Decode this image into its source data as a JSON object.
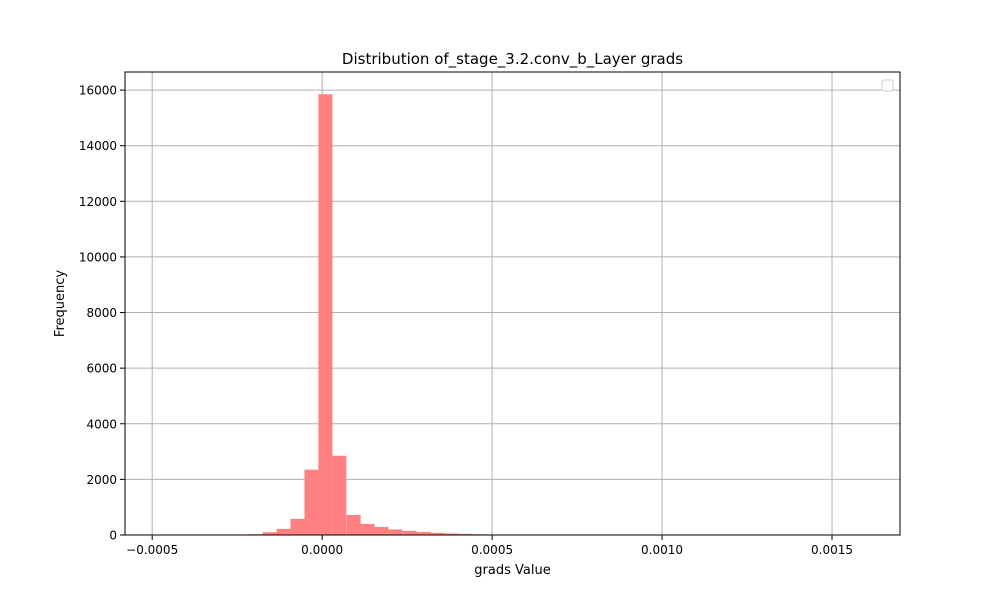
{
  "chart_data": {
    "type": "bar",
    "title": "Distribution of_stage_3.2.conv_b_Layer grads",
    "xlabel": "grads Value",
    "ylabel": "Frequency",
    "xlim": [
      -0.00058,
      0.0017
    ],
    "ylim": [
      0,
      16650
    ],
    "x_ticks": [
      {
        "value": -0.0005,
        "label": "−0.0005"
      },
      {
        "value": 0.0,
        "label": "0.0000"
      },
      {
        "value": 0.0005,
        "label": "0.0005"
      },
      {
        "value": 0.001,
        "label": "0.0010"
      },
      {
        "value": 0.0015,
        "label": "0.0015"
      }
    ],
    "y_ticks": [
      {
        "value": 0,
        "label": "0"
      },
      {
        "value": 2000,
        "label": "2000"
      },
      {
        "value": 4000,
        "label": "4000"
      },
      {
        "value": 6000,
        "label": "6000"
      },
      {
        "value": 8000,
        "label": "8000"
      },
      {
        "value": 10000,
        "label": "10000"
      },
      {
        "value": 12000,
        "label": "12000"
      },
      {
        "value": 14000,
        "label": "14000"
      },
      {
        "value": 16000,
        "label": "16000"
      }
    ],
    "grid": true,
    "legend": "top-right (empty)",
    "bar_color": "#ff8080",
    "bin_width": 4.12e-05,
    "bins": [
      {
        "x0": -0.000505,
        "count": 0
      },
      {
        "x0": -0.000464,
        "count": 0
      },
      {
        "x0": -0.000423,
        "count": 0
      },
      {
        "x0": -0.000381,
        "count": 0
      },
      {
        "x0": -0.00034,
        "count": 0
      },
      {
        "x0": -0.000299,
        "count": 3
      },
      {
        "x0": -0.000258,
        "count": 10
      },
      {
        "x0": -0.000217,
        "count": 30
      },
      {
        "x0": -0.000175,
        "count": 100
      },
      {
        "x0": -0.000134,
        "count": 220
      },
      {
        "x0": -9.3e-05,
        "count": 580
      },
      {
        "x0": -5.2e-05,
        "count": 2350
      },
      {
        "x0": -1.1e-05,
        "count": 15850
      },
      {
        "x0": 3e-05,
        "count": 2850
      },
      {
        "x0": 7.2e-05,
        "count": 720
      },
      {
        "x0": 0.000113,
        "count": 400
      },
      {
        "x0": 0.000154,
        "count": 290
      },
      {
        "x0": 0.000195,
        "count": 200
      },
      {
        "x0": 0.000237,
        "count": 150
      },
      {
        "x0": 0.000278,
        "count": 110
      },
      {
        "x0": 0.000319,
        "count": 80
      },
      {
        "x0": 0.00036,
        "count": 55
      },
      {
        "x0": 0.000402,
        "count": 40
      },
      {
        "x0": 0.000443,
        "count": 28
      },
      {
        "x0": 0.000484,
        "count": 15
      },
      {
        "x0": 0.000525,
        "count": 8
      },
      {
        "x0": 0.000566,
        "count": 5
      },
      {
        "x0": 0.000608,
        "count": 3
      },
      {
        "x0": 0.000649,
        "count": 2
      },
      {
        "x0": 0.00069,
        "count": 1
      },
      {
        "x0": 0.000731,
        "count": 1
      },
      {
        "x0": 0.000773,
        "count": 1
      },
      {
        "x0": 0.000814,
        "count": 0
      },
      {
        "x0": 0.000855,
        "count": 0
      },
      {
        "x0": 0.000896,
        "count": 0
      },
      {
        "x0": 0.000938,
        "count": 0
      },
      {
        "x0": 0.000979,
        "count": 0
      },
      {
        "x0": 0.00102,
        "count": 0
      },
      {
        "x0": 0.001061,
        "count": 0
      },
      {
        "x0": 0.001103,
        "count": 0
      },
      {
        "x0": 0.001144,
        "count": 0
      },
      {
        "x0": 0.001185,
        "count": 0
      },
      {
        "x0": 0.001226,
        "count": 0
      },
      {
        "x0": 0.001268,
        "count": 0
      },
      {
        "x0": 0.001309,
        "count": 0
      },
      {
        "x0": 0.00135,
        "count": 0
      },
      {
        "x0": 0.001391,
        "count": 0
      },
      {
        "x0": 0.001433,
        "count": 0
      },
      {
        "x0": 0.001474,
        "count": 0
      },
      {
        "x0": 0.001515,
        "count": 0
      },
      {
        "x0": 0.001556,
        "count": 1
      }
    ]
  }
}
